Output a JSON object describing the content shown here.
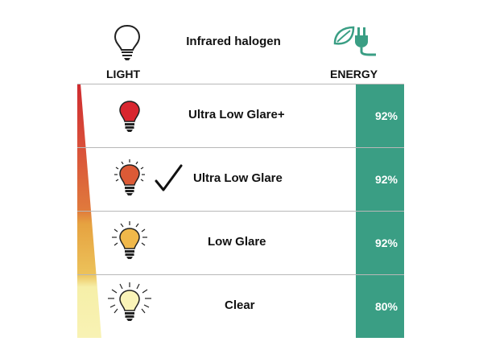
{
  "header": {
    "title": "Infrared halogen",
    "light_label": "LIGHT",
    "energy_label": "ENERGY",
    "light_icon": "lightbulb-outline-icon",
    "energy_icon": "leaf-plug-icon"
  },
  "colors": {
    "energy_band": "#3a9e84",
    "row_1_bulb": "#d8262f",
    "row_2_bulb": "#dc5a36",
    "row_3_bulb": "#f0b84a",
    "row_4_bulb": "#faf4b8",
    "gradient_top": "#cf2b2f",
    "gradient_mid": "#e6a240",
    "gradient_bottom": "#f6f0a8"
  },
  "rows": [
    {
      "label": "Ultra Low Glare+",
      "energy": "92%",
      "selected": false,
      "icon": "red-bulb-icon"
    },
    {
      "label": "Ultra Low Glare",
      "energy": "92%",
      "selected": true,
      "icon": "orange-bulb-icon"
    },
    {
      "label": "Low Glare",
      "energy": "92%",
      "selected": false,
      "icon": "amber-bulb-icon"
    },
    {
      "label": "Clear",
      "energy": "80%",
      "selected": false,
      "icon": "clear-bulb-icon"
    }
  ]
}
